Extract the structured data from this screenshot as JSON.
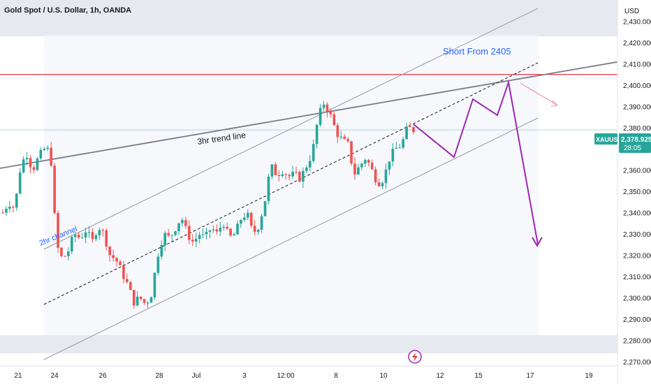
{
  "header": {
    "title": "Gold Spot / U.S. Dollar, 1h, OANDA"
  },
  "axis": {
    "currency": "USD"
  },
  "price_badge": {
    "symbol": "XAUUSD",
    "price": "2,378.925",
    "countdown": "28:05"
  },
  "colors": {
    "up": "#26a69a",
    "down": "#ef5350",
    "resistance": "#f23645",
    "projection": "#9c27b0",
    "annotation": "#2962ff"
  },
  "icons": {
    "event_marker": "lightning-icon"
  },
  "annotations": {
    "short_label": "Short From 2405",
    "trend_label": "3hr trend line",
    "channel_label": "2hr channel"
  },
  "chart_data": {
    "type": "candlestick",
    "ylim": [
      2268,
      2440
    ],
    "y_ticks": [
      "2,270.000",
      "2,280.000",
      "2,290.000",
      "2,300.000",
      "2,310.000",
      "2,320.000",
      "2,330.000",
      "2,340.000",
      "2,350.000",
      "2,360.000",
      "2,370.000",
      "2,380.000",
      "2,390.000",
      "2,400.000",
      "2,410.000",
      "2,420.000",
      "2,430.000"
    ],
    "x_ticks": [
      "21",
      "24",
      "26",
      "28",
      "Jul",
      "3",
      "12:00",
      "8",
      "10",
      "12",
      "15",
      "17",
      "19"
    ],
    "resistance_level": 2405,
    "last_price": 2378.925,
    "price_path": [
      [
        21,
        2340
      ],
      [
        22,
        2345
      ],
      [
        23,
        2342
      ],
      [
        24,
        2362
      ],
      [
        25,
        2368
      ],
      [
        26,
        2360
      ],
      [
        27,
        2366
      ],
      [
        28,
        2370
      ],
      [
        29,
        2369
      ],
      [
        30,
        2325
      ],
      [
        31,
        2318
      ],
      [
        32,
        2322
      ],
      [
        33,
        2330
      ],
      [
        34,
        2328
      ],
      [
        35,
        2332
      ],
      [
        36,
        2326
      ],
      [
        37,
        2334
      ],
      [
        38,
        2330
      ],
      [
        39,
        2320
      ],
      [
        40,
        2318
      ],
      [
        41,
        2312
      ],
      [
        42,
        2306
      ],
      [
        43,
        2298
      ],
      [
        44,
        2300
      ],
      [
        45,
        2297
      ],
      [
        46,
        2302
      ],
      [
        47,
        2320
      ],
      [
        48,
        2330
      ],
      [
        49,
        2328
      ],
      [
        50,
        2333
      ],
      [
        51,
        2338
      ],
      [
        52,
        2330
      ],
      [
        53,
        2326
      ],
      [
        54,
        2330
      ],
      [
        55,
        2328
      ],
      [
        56,
        2333
      ],
      [
        57,
        2330
      ],
      [
        58,
        2336
      ],
      [
        59,
        2328
      ],
      [
        60,
        2330
      ],
      [
        61,
        2337
      ],
      [
        62,
        2340
      ],
      [
        63,
        2330
      ],
      [
        64,
        2334
      ],
      [
        65,
        2345
      ],
      [
        66,
        2362
      ],
      [
        67,
        2358
      ],
      [
        68,
        2360
      ],
      [
        69,
        2357
      ],
      [
        70,
        2358
      ],
      [
        71,
        2356
      ],
      [
        72,
        2362
      ],
      [
        73,
        2368
      ],
      [
        74,
        2385
      ],
      [
        75,
        2392
      ],
      [
        76,
        2386
      ],
      [
        77,
        2378
      ],
      [
        78,
        2374
      ],
      [
        79,
        2372
      ],
      [
        80,
        2358
      ],
      [
        81,
        2362
      ],
      [
        82,
        2366
      ],
      [
        83,
        2360
      ],
      [
        84,
        2354
      ],
      [
        85,
        2356
      ],
      [
        86,
        2366
      ],
      [
        87,
        2370
      ],
      [
        88,
        2372
      ],
      [
        89,
        2380
      ],
      [
        90,
        2378.9
      ]
    ],
    "projection_path": [
      [
        90,
        2387
      ],
      [
        98,
        2369
      ],
      [
        102,
        2398
      ],
      [
        107,
        2390
      ],
      [
        110,
        2406
      ],
      [
        113,
        2380
      ],
      [
        117,
        2328
      ]
    ],
    "lines": [
      {
        "label": "3hr trend line",
        "from": [
          0,
          2366
        ],
        "to": [
          130,
          2417
        ]
      },
      {
        "label": "2hr channel",
        "upper_from": [
          20,
          2325
        ],
        "upper_to": [
          120,
          2443
        ],
        "middle_from": [
          20,
          2298
        ],
        "middle_to": [
          120,
          2415
        ],
        "lower_from": [
          20,
          2271
        ],
        "lower_to": [
          120,
          2388
        ]
      }
    ],
    "shaded_bands": [
      [
        2428,
        2440
      ],
      [
        2268,
        2284
      ]
    ]
  }
}
